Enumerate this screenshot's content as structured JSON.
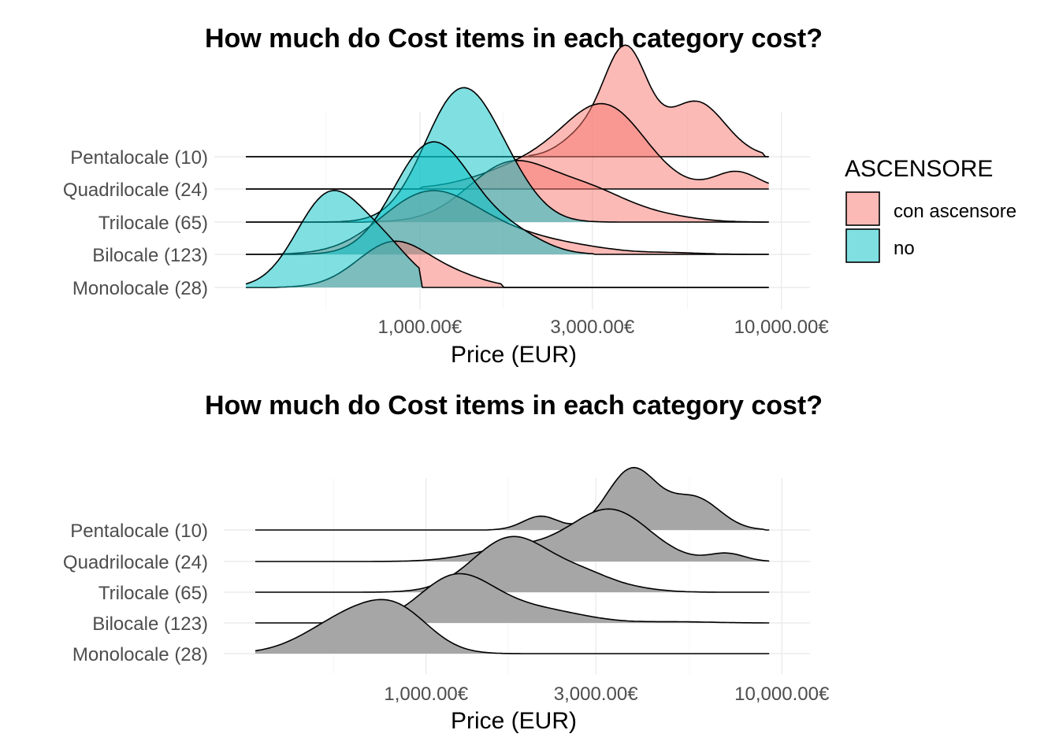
{
  "chart_data": [
    {
      "type": "ridgeline",
      "title": "How much do Cost items in each category cost?",
      "xlabel": "Price (EUR)",
      "ylabel": "",
      "x_scale": "log10",
      "xlim": [
        270,
        12000
      ],
      "x_ticks": [
        1000,
        3000,
        10000
      ],
      "x_tick_labels": [
        "1,000.00€",
        "3,000.00€",
        "10,000.00€"
      ],
      "x_minor_ticks": [
        550,
        1700,
        5500
      ],
      "categories": [
        "Monolocale (28)",
        "Bilocale (123)",
        "Trilocale (65)",
        "Quadrilocale (24)",
        "Pentalocale (10)"
      ],
      "grid": true,
      "legend": {
        "title": "ASCENSORE",
        "position": "right",
        "entries": [
          {
            "label": "con ascensore",
            "color": "#f8766d"
          },
          {
            "label": "no",
            "color": "#00bfc4"
          }
        ]
      },
      "series": [
        {
          "name": "con ascensore",
          "color": "#f8766d",
          "ridges": [
            {
              "category": "Monolocale (28)",
              "range": [
                400,
                1700
              ],
              "peaks": [
                [
                  850,
                  0.58,
                  0.1
                ],
                [
                  1300,
                  0.1,
                  0.08
                ]
              ]
            },
            {
              "category": "Bilocale (123)",
              "range": [
                400,
                8000
              ],
              "peaks": [
                [
                  1050,
                  0.75,
                  0.13
                ],
                [
                  1800,
                  0.22,
                  0.14
                ],
                [
                  3000,
                  0.04,
                  0.1
                ],
                [
                  5000,
                  0.02,
                  0.08
                ]
              ]
            },
            {
              "category": "Trilocale (65)",
              "range": [
                700,
                9000
              ],
              "peaks": [
                [
                  1800,
                  0.75,
                  0.12
                ],
                [
                  3000,
                  0.32,
                  0.1
                ],
                [
                  4500,
                  0.08,
                  0.1
                ]
              ]
            },
            {
              "category": "Quadrilocale (24)",
              "range": [
                1000,
                10000
              ],
              "peaks": [
                [
                  2100,
                  0.33,
                  0.14
                ],
                [
                  3300,
                  0.95,
                  0.11
                ],
                [
                  7500,
                  0.22,
                  0.06
                ]
              ]
            },
            {
              "category": "Pentalocale (10)",
              "range": [
                2000,
                9000
              ],
              "peaks": [
                [
                  2800,
                  0.25,
                  0.06
                ],
                [
                  3700,
                  1.35,
                  0.06
                ],
                [
                  5800,
                  0.7,
                  0.08
                ]
              ]
            }
          ]
        },
        {
          "name": "no",
          "color": "#00bfc4",
          "ridges": [
            {
              "category": "Monolocale (28)",
              "range": [
                270,
                1000
              ],
              "peaks": [
                [
                  560,
                  1.15,
                  0.09
                ],
                [
                  800,
                  0.45,
                  0.08
                ]
              ]
            },
            {
              "category": "Bilocale (123)",
              "range": [
                300,
                3000
              ],
              "peaks": [
                [
                  1050,
                  1.25,
                  0.1
                ],
                [
                  1400,
                  0.35,
                  0.1
                ],
                [
                  1900,
                  0.15,
                  0.08
                ]
              ]
            },
            {
              "category": "Trilocale (65)",
              "range": [
                500,
                3500
              ],
              "peaks": [
                [
                  1300,
                  1.65,
                  0.1
                ],
                [
                  1800,
                  0.25,
                  0.08
                ]
              ]
            },
            {
              "category": "Quadrilocale (24)",
              "range": [],
              "peaks": []
            },
            {
              "category": "Pentalocale (10)",
              "range": [],
              "peaks": []
            }
          ]
        }
      ]
    },
    {
      "type": "ridgeline",
      "title": "How much do Cost items in each category cost?",
      "xlabel": "Price (EUR)",
      "ylabel": "",
      "x_scale": "log10",
      "xlim": [
        270,
        12000
      ],
      "x_ticks": [
        1000,
        3000,
        10000
      ],
      "x_tick_labels": [
        "1,000.00€",
        "3,000.00€",
        "10,000.00€"
      ],
      "x_minor_ticks": [
        550,
        1700,
        5500
      ],
      "categories": [
        "Monolocale (28)",
        "Bilocale (123)",
        "Trilocale (65)",
        "Quadrilocale (24)",
        "Pentalocale (10)"
      ],
      "grid": true,
      "fill": "#a6a6a6",
      "series": [
        {
          "name": "",
          "color": "#a6a6a6",
          "ridges": [
            {
              "category": "Monolocale (28)",
              "range": [
                270,
                1900
              ],
              "peaks": [
                [
                  620,
                  0.95,
                  0.12
                ],
                [
                  850,
                  0.75,
                  0.09
                ]
              ]
            },
            {
              "category": "Bilocale (123)",
              "range": [
                300,
                9000
              ],
              "peaks": [
                [
                  1200,
                  1.1,
                  0.1
                ],
                [
                  1750,
                  0.35,
                  0.12
                ],
                [
                  2500,
                  0.12,
                  0.1
                ],
                [
                  5000,
                  0.03,
                  0.1
                ]
              ]
            },
            {
              "category": "Trilocale (65)",
              "range": [
                400,
                9000
              ],
              "peaks": [
                [
                  1750,
                  1.4,
                  0.11
                ],
                [
                  2800,
                  0.35,
                  0.08
                ],
                [
                  3800,
                  0.08,
                  0.08
                ]
              ]
            },
            {
              "category": "Quadrilocale (24)",
              "range": [
                700,
                10000
              ],
              "peaks": [
                [
                  1800,
                  0.35,
                  0.12
                ],
                [
                  3300,
                  1.3,
                  0.11
                ],
                [
                  7000,
                  0.2,
                  0.05
                ]
              ]
            },
            {
              "category": "Pentalocale (10)",
              "range": [
                1500,
                9000
              ],
              "peaks": [
                [
                  2100,
                  0.35,
                  0.05
                ],
                [
                  3800,
                  1.55,
                  0.07
                ],
                [
                  5700,
                  0.8,
                  0.07
                ]
              ]
            }
          ]
        }
      ]
    }
  ]
}
